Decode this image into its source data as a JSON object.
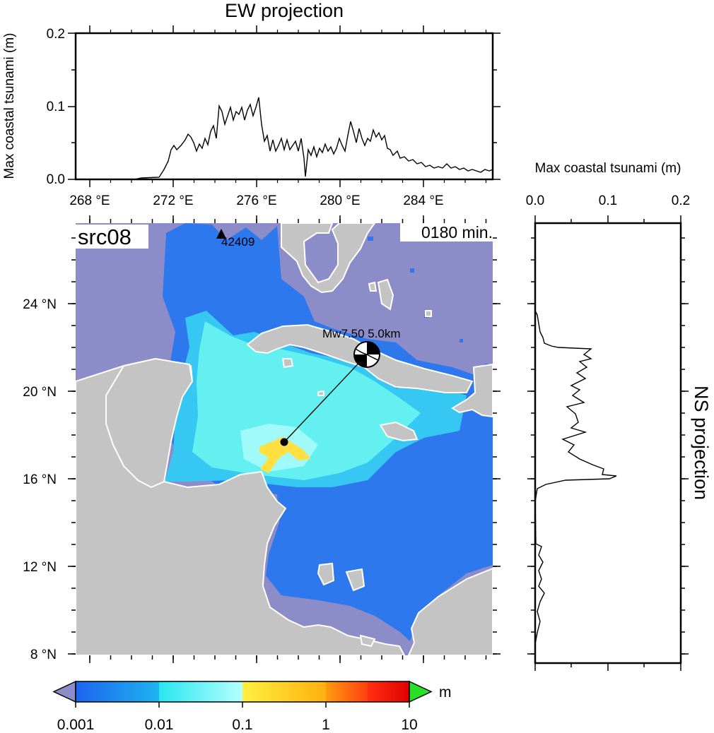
{
  "ew_panel": {
    "title": "EW projection",
    "ylabel": "Max coastal tsunami (m)",
    "y_ticks": [
      "0.0",
      "0.1",
      "0.2"
    ],
    "x_ticks": [
      "268 °E",
      "272 °E",
      "276 °E",
      "280 °E",
      "284 °E"
    ]
  },
  "ns_panel": {
    "title": "NS projection",
    "xlabel": "Max coastal tsunami (m)",
    "x_ticks": [
      "0.0",
      "0.1",
      "0.2"
    ]
  },
  "map": {
    "source_label": "src08",
    "time_label": "0180 min.",
    "y_ticks": [
      "24 °N",
      "20 °N",
      "16 °N",
      "12 °N",
      "8 °N"
    ],
    "event_label": "Mw7.50  5.0km",
    "station_label": "42409",
    "colors": {
      "ocean": "#8c8cc8",
      "land": "#c4c4c4",
      "coast": "#ffffff",
      "wave_low": "#2e78ee",
      "wave_mid": "#36c8f2",
      "wave_high": "#64f0f0",
      "wave_peak": "#ffe040"
    }
  },
  "colorbar": {
    "unit": "m",
    "ticks": [
      "0.001",
      "0.01",
      "0.1",
      "1",
      "10"
    ],
    "colors": [
      "#1e64f0",
      "#1ec8f0",
      "#a0ffff",
      "#ffd020",
      "#ff5010",
      "#e81010"
    ],
    "over_color": "#28e028",
    "under_color": "#8c8cc8"
  }
}
